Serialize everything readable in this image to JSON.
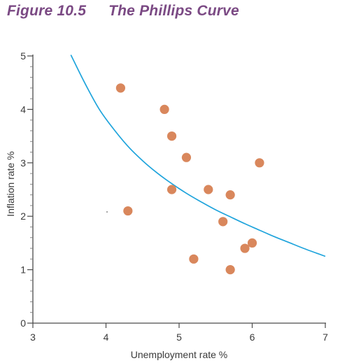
{
  "figure": {
    "number": "Figure 10.5",
    "title": "The Phillips Curve"
  },
  "colors": {
    "title": "#7b4a84",
    "curve": "#1fa4dc",
    "points": "#d9875c",
    "axis": "#4a4a4a"
  },
  "chart_data": {
    "type": "scatter",
    "title": "The Phillips Curve",
    "xlabel": "Unemployment rate %",
    "ylabel": "Inflation rate %",
    "xlim": [
      3,
      7
    ],
    "ylim": [
      0,
      5
    ],
    "xticks": [
      3,
      4,
      5,
      6,
      7
    ],
    "yticks": [
      0,
      1,
      2,
      3,
      4,
      5
    ],
    "grid": false,
    "legend": "none",
    "points": [
      {
        "x": 4.2,
        "y": 4.4
      },
      {
        "x": 4.8,
        "y": 4.0
      },
      {
        "x": 4.9,
        "y": 3.5
      },
      {
        "x": 5.1,
        "y": 3.1
      },
      {
        "x": 6.1,
        "y": 3.0
      },
      {
        "x": 4.9,
        "y": 2.5
      },
      {
        "x": 5.4,
        "y": 2.5
      },
      {
        "x": 5.7,
        "y": 2.4
      },
      {
        "x": 4.3,
        "y": 2.1
      },
      {
        "x": 5.6,
        "y": 1.9
      },
      {
        "x": 6.0,
        "y": 1.5
      },
      {
        "x": 5.9,
        "y": 1.4
      },
      {
        "x": 5.2,
        "y": 1.2
      },
      {
        "x": 5.7,
        "y": 1.0
      }
    ],
    "curve": [
      {
        "x": 3.52,
        "y": 5.02
      },
      {
        "x": 3.7,
        "y": 4.52
      },
      {
        "x": 3.9,
        "y": 4.02
      },
      {
        "x": 4.1,
        "y": 3.64
      },
      {
        "x": 4.3,
        "y": 3.31
      },
      {
        "x": 4.5,
        "y": 3.04
      },
      {
        "x": 4.7,
        "y": 2.81
      },
      {
        "x": 4.9,
        "y": 2.61
      },
      {
        "x": 5.1,
        "y": 2.43
      },
      {
        "x": 5.3,
        "y": 2.27
      },
      {
        "x": 5.5,
        "y": 2.12
      },
      {
        "x": 5.7,
        "y": 1.99
      },
      {
        "x": 5.9,
        "y": 1.86
      },
      {
        "x": 6.1,
        "y": 1.74
      },
      {
        "x": 6.3,
        "y": 1.62
      },
      {
        "x": 6.5,
        "y": 1.51
      },
      {
        "x": 6.7,
        "y": 1.4
      },
      {
        "x": 6.9,
        "y": 1.3
      },
      {
        "x": 7.0,
        "y": 1.25
      }
    ]
  }
}
